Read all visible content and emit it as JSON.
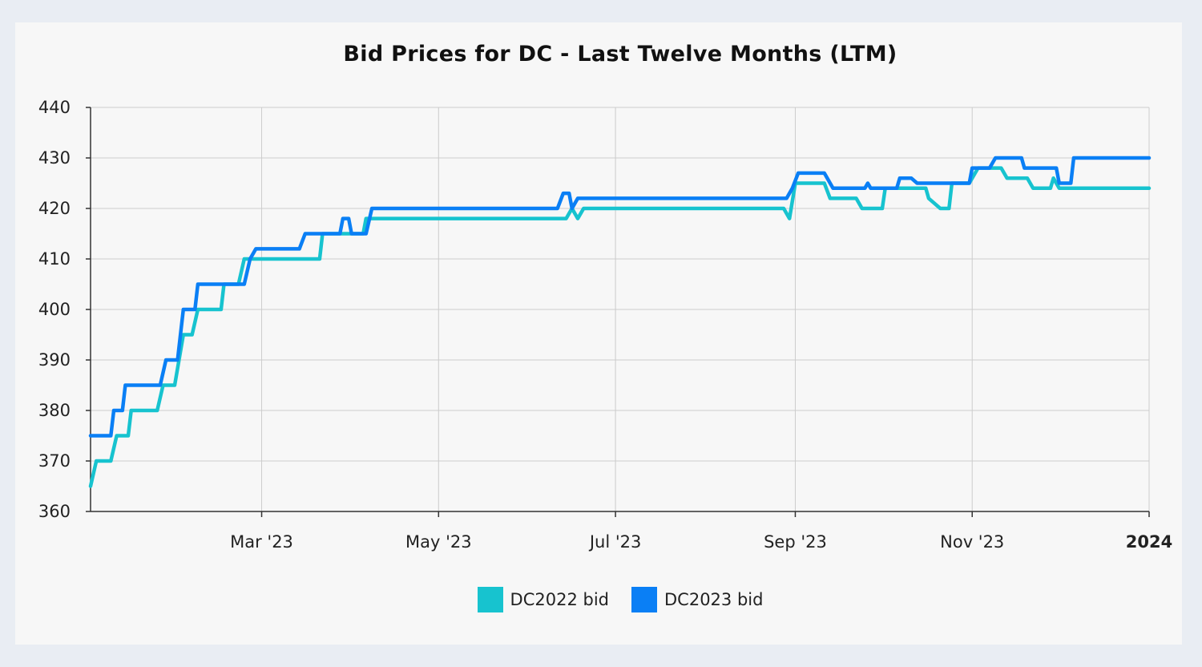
{
  "colors": {
    "page_background": "#e9edf3",
    "panel_background": "#f7f7f7",
    "grid": "#cccccc",
    "axis": "#333333",
    "series_2022": "#17c3cf",
    "series_2023": "#0a7ff5"
  },
  "chart_data": {
    "type": "line",
    "title": "Bid Prices for DC - Last Twelve Months (LTM)",
    "xlabel": "",
    "ylabel": "",
    "xlim": [
      "2023-01-01",
      "2024-01-01"
    ],
    "ylim": [
      360,
      440
    ],
    "yticks": [
      360,
      370,
      380,
      390,
      400,
      410,
      420,
      430,
      440
    ],
    "xticks": [
      {
        "label": "Mar '23",
        "date": "2023-03-01",
        "bold": false
      },
      {
        "label": "May '23",
        "date": "2023-05-01",
        "bold": false
      },
      {
        "label": "Jul '23",
        "date": "2023-07-01",
        "bold": false
      },
      {
        "label": "Sep '23",
        "date": "2023-09-01",
        "bold": false
      },
      {
        "label": "Nov '23",
        "date": "2023-11-01",
        "bold": false
      },
      {
        "label": "2024",
        "date": "2024-01-01",
        "bold": true
      }
    ],
    "grid": true,
    "legend_position": "bottom-center",
    "series": [
      {
        "name": "DC2022 bid",
        "color": "#17c3cf",
        "points": [
          [
            "2023-01-01",
            365
          ],
          [
            "2023-01-03",
            370
          ],
          [
            "2023-01-08",
            370
          ],
          [
            "2023-01-10",
            375
          ],
          [
            "2023-01-14",
            375
          ],
          [
            "2023-01-15",
            380
          ],
          [
            "2023-01-24",
            380
          ],
          [
            "2023-01-26",
            385
          ],
          [
            "2023-01-30",
            385
          ],
          [
            "2023-02-02",
            395
          ],
          [
            "2023-02-05",
            395
          ],
          [
            "2023-02-07",
            400
          ],
          [
            "2023-02-15",
            400
          ],
          [
            "2023-02-16",
            405
          ],
          [
            "2023-02-21",
            405
          ],
          [
            "2023-02-23",
            410
          ],
          [
            "2023-03-21",
            410
          ],
          [
            "2023-03-22",
            415
          ],
          [
            "2023-04-05",
            415
          ],
          [
            "2023-04-06",
            418
          ],
          [
            "2023-06-14",
            418
          ],
          [
            "2023-06-16",
            420
          ],
          [
            "2023-06-18",
            418
          ],
          [
            "2023-06-20",
            420
          ],
          [
            "2023-08-28",
            420
          ],
          [
            "2023-08-30",
            418
          ],
          [
            "2023-09-01",
            425
          ],
          [
            "2023-09-11",
            425
          ],
          [
            "2023-09-13",
            422
          ],
          [
            "2023-09-22",
            422
          ],
          [
            "2023-09-24",
            420
          ],
          [
            "2023-10-01",
            420
          ],
          [
            "2023-10-02",
            424
          ],
          [
            "2023-10-16",
            424
          ],
          [
            "2023-10-17",
            422
          ],
          [
            "2023-10-21",
            420
          ],
          [
            "2023-10-24",
            420
          ],
          [
            "2023-10-25",
            425
          ],
          [
            "2023-10-31",
            425
          ],
          [
            "2023-11-03",
            428
          ],
          [
            "2023-11-11",
            428
          ],
          [
            "2023-11-13",
            426
          ],
          [
            "2023-11-20",
            426
          ],
          [
            "2023-11-22",
            424
          ],
          [
            "2023-11-28",
            424
          ],
          [
            "2023-11-29",
            426
          ],
          [
            "2023-12-01",
            424
          ],
          [
            "2024-01-01",
            424
          ]
        ]
      },
      {
        "name": "DC2023 bid",
        "color": "#0a7ff5",
        "points": [
          [
            "2023-01-01",
            375
          ],
          [
            "2023-01-08",
            375
          ],
          [
            "2023-01-09",
            380
          ],
          [
            "2023-01-12",
            380
          ],
          [
            "2023-01-13",
            385
          ],
          [
            "2023-01-25",
            385
          ],
          [
            "2023-01-27",
            390
          ],
          [
            "2023-01-31",
            390
          ],
          [
            "2023-02-02",
            400
          ],
          [
            "2023-02-06",
            400
          ],
          [
            "2023-02-07",
            405
          ],
          [
            "2023-02-23",
            405
          ],
          [
            "2023-02-25",
            410
          ],
          [
            "2023-02-27",
            412
          ],
          [
            "2023-03-14",
            412
          ],
          [
            "2023-03-16",
            415
          ],
          [
            "2023-03-28",
            415
          ],
          [
            "2023-03-29",
            418
          ],
          [
            "2023-03-31",
            418
          ],
          [
            "2023-04-01",
            415
          ],
          [
            "2023-04-06",
            415
          ],
          [
            "2023-04-08",
            420
          ],
          [
            "2023-06-11",
            420
          ],
          [
            "2023-06-13",
            423
          ],
          [
            "2023-06-15",
            423
          ],
          [
            "2023-06-16",
            420
          ],
          [
            "2023-06-18",
            422
          ],
          [
            "2023-08-29",
            422
          ],
          [
            "2023-08-31",
            424
          ],
          [
            "2023-09-02",
            427
          ],
          [
            "2023-09-11",
            427
          ],
          [
            "2023-09-14",
            424
          ],
          [
            "2023-09-25",
            424
          ],
          [
            "2023-09-26",
            425
          ],
          [
            "2023-09-27",
            424
          ],
          [
            "2023-10-06",
            424
          ],
          [
            "2023-10-07",
            426
          ],
          [
            "2023-10-11",
            426
          ],
          [
            "2023-10-13",
            425
          ],
          [
            "2023-10-31",
            425
          ],
          [
            "2023-11-01",
            428
          ],
          [
            "2023-11-07",
            428
          ],
          [
            "2023-11-09",
            430
          ],
          [
            "2023-11-18",
            430
          ],
          [
            "2023-11-19",
            428
          ],
          [
            "2023-11-30",
            428
          ],
          [
            "2023-12-01",
            425
          ],
          [
            "2023-12-05",
            425
          ],
          [
            "2023-12-06",
            430
          ],
          [
            "2024-01-01",
            430
          ]
        ]
      }
    ]
  }
}
